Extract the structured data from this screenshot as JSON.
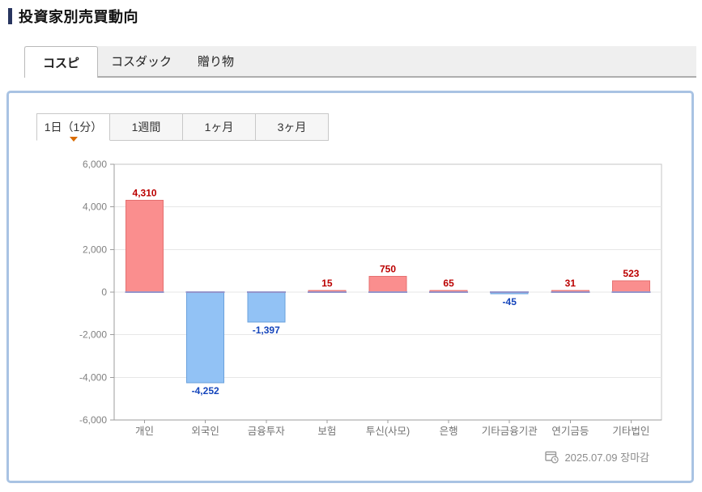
{
  "page": {
    "title": "投資家別売買動向"
  },
  "market_tabs": [
    {
      "label": "コスピ",
      "active": true
    },
    {
      "label": "コスダック",
      "active": false
    },
    {
      "label": "贈り物",
      "active": false
    }
  ],
  "period_tabs": [
    {
      "label": "1日（1分）",
      "active": true
    },
    {
      "label": "1週間",
      "active": false
    },
    {
      "label": "1ヶ月",
      "active": false
    },
    {
      "label": "3ヶ月",
      "active": false
    }
  ],
  "footer": {
    "icon": "window-clock-icon",
    "date_label": "2025.07.09 장마감"
  },
  "chart_data": {
    "type": "bar",
    "title": "",
    "xlabel": "",
    "ylabel": "",
    "categories": [
      "개인",
      "외국인",
      "금융투자",
      "보험",
      "투신(사모)",
      "은행",
      "기타금융기관",
      "연기금등",
      "기타법인"
    ],
    "values": [
      4310,
      -4252,
      -1397,
      15,
      750,
      65,
      -45,
      31,
      523
    ],
    "value_labels": [
      "4,310",
      "-4,252",
      "-1,397",
      "15",
      "750",
      "65",
      "-45",
      "31",
      "523"
    ],
    "ylim": [
      -6000,
      6000
    ],
    "ytick_interval": 2000,
    "ytick_labels": [
      "6,000",
      "4,000",
      "2,000",
      "0",
      "-2,000",
      "-4,000",
      "-6,000"
    ],
    "grid": true,
    "legend": false,
    "colors": {
      "positive_fill": "#fa8e8e",
      "positive_stroke": "#e57070",
      "negative_fill": "#92c2f5",
      "negative_stroke": "#6ba1dc",
      "positive_label": "#bb0000",
      "negative_label": "#1444bb",
      "zero_edge": "#9595cb",
      "grid": "#e7e7e7",
      "axis": "#9c9c9c",
      "frame": "#c5c5c5",
      "tick_text": "#808080",
      "category_text": "#737373"
    }
  }
}
